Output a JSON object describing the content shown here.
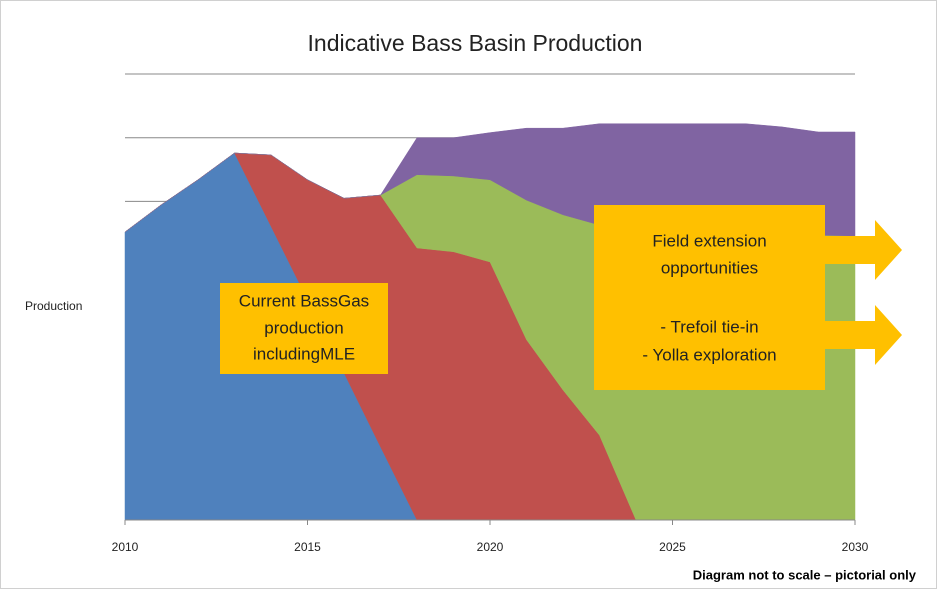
{
  "chart_data": {
    "type": "stacked_area",
    "title": "Indicative Bass Basin Production",
    "ylabel": "Production",
    "footnote": "Diagram not to scale – pictorial only",
    "x": [
      2010,
      2011,
      2012,
      2013,
      2014,
      2015,
      2016,
      2017,
      2018,
      2019,
      2020,
      2021,
      2022,
      2023,
      2024,
      2025,
      2026,
      2027,
      2028,
      2029,
      2030
    ],
    "xlim": [
      2010,
      2030
    ],
    "xticks": [
      2010,
      2015,
      2020,
      2025,
      2030
    ],
    "ylim": [
      0,
      7
    ],
    "yticks": [
      5,
      6,
      7
    ],
    "grid": true,
    "series": [
      {
        "color": "#4f81bd",
        "values": [
          4.52,
          4.95,
          5.34,
          5.76,
          4.61,
          3.46,
          2.31,
          1.15,
          0,
          0,
          0,
          0,
          0,
          0,
          0,
          0,
          0,
          0,
          0,
          0,
          0
        ]
      },
      {
        "color": "#c0504d",
        "values": [
          0,
          0,
          0,
          0,
          1.12,
          1.88,
          2.74,
          3.95,
          4.27,
          4.21,
          4.05,
          2.83,
          2.04,
          1.33,
          0,
          0,
          0,
          0,
          0,
          0,
          0
        ]
      },
      {
        "color": "#9bbb59",
        "values": [
          0,
          0,
          0,
          0,
          0,
          0,
          0,
          0,
          1.15,
          1.19,
          1.29,
          2.19,
          2.75,
          3.3,
          4.58,
          4.55,
          4.52,
          4.5,
          4.48,
          4.47,
          4.46
        ]
      },
      {
        "color": "#8064a2",
        "values": [
          0,
          0,
          0,
          0,
          0,
          0,
          0,
          0,
          0.58,
          0.6,
          0.74,
          1.13,
          1.36,
          1.59,
          1.64,
          1.67,
          1.7,
          1.72,
          1.69,
          1.62,
          1.63
        ]
      }
    ],
    "annotations": [
      {
        "lines": [
          "Current BassGas",
          "production",
          "includingMLE"
        ]
      },
      {
        "lines": [
          "Field extension",
          "opportunities",
          "- Trefoil tie-in",
          "- Yolla exploration"
        ]
      }
    ],
    "annotation_color": "#ffc000"
  }
}
